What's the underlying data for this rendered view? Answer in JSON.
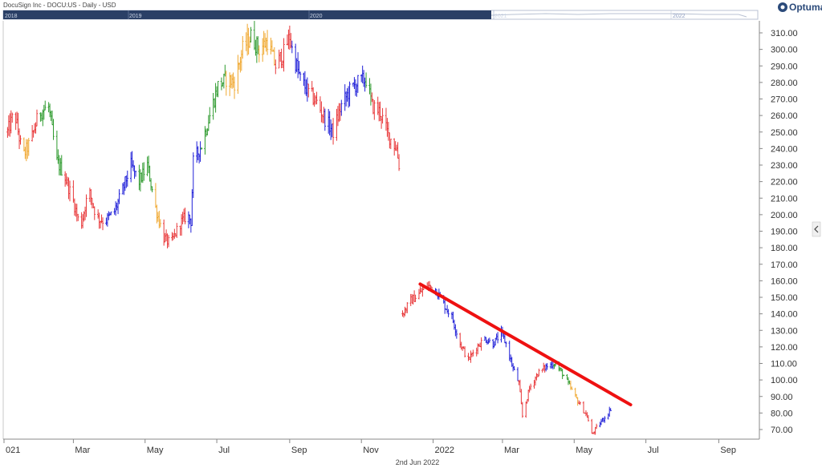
{
  "header": {
    "title": "DocuSign Inc - DOCU:US - Daily - USD",
    "brand": "Optuma"
  },
  "navigator": {
    "years": [
      "2018",
      "2019",
      "2020",
      "2021",
      "2022"
    ]
  },
  "footer": {
    "date": "2nd Jun 2022"
  },
  "colors": {
    "red": "#e8383a",
    "blue": "#2020d8",
    "green": "#2e9a2e",
    "orange": "#f0a830",
    "trendline": "#ee1111",
    "navigator": "#2a3f66"
  },
  "chart_data": {
    "type": "bar",
    "style": "ohlc",
    "title": "DocuSign Inc - DOCU:US - Daily - USD",
    "y_axis_side": "right",
    "ylim": [
      64,
      317
    ],
    "y_ticks": [
      "310.00",
      "300.00",
      "290.00",
      "280.00",
      "270.00",
      "260.00",
      "250.00",
      "240.00",
      "230.00",
      "220.00",
      "210.00",
      "200.00",
      "190.00",
      "180.00",
      "170.00",
      "160.00",
      "150.00",
      "140.00",
      "130.00",
      "120.00",
      "110.00",
      "100.00",
      "90.00",
      "80.00",
      "70.00"
    ],
    "x_ticks": [
      "021",
      "Mar",
      "May",
      "Jul",
      "Sep",
      "Nov",
      "2022",
      "Mar",
      "May",
      "Jul",
      "Sep"
    ],
    "price_path": [
      [
        "2021-01-04",
        250,
        "red"
      ],
      [
        "2021-01-10",
        262,
        "red"
      ],
      [
        "2021-01-17",
        235,
        "orange"
      ],
      [
        "2021-01-24",
        245,
        "red"
      ],
      [
        "2021-01-31",
        262,
        "green"
      ],
      [
        "2021-02-08",
        265,
        "green"
      ],
      [
        "2021-02-15",
        232,
        "green"
      ],
      [
        "2021-02-21",
        225,
        "red"
      ],
      [
        "2021-03-01",
        208,
        "red"
      ],
      [
        "2021-03-07",
        192,
        "red"
      ],
      [
        "2021-03-14",
        215,
        "red"
      ],
      [
        "2021-03-21",
        198,
        "red"
      ],
      [
        "2021-03-28",
        196,
        "blue"
      ],
      [
        "2021-04-05",
        202,
        "blue"
      ],
      [
        "2021-04-12",
        215,
        "blue"
      ],
      [
        "2021-04-19",
        230,
        "blue"
      ],
      [
        "2021-04-26",
        220,
        "green"
      ],
      [
        "2021-05-03",
        230,
        "green"
      ],
      [
        "2021-05-10",
        204,
        "orange"
      ],
      [
        "2021-05-17",
        186,
        "red"
      ],
      [
        "2021-05-23",
        182,
        "red"
      ],
      [
        "2021-05-30",
        194,
        "red"
      ],
      [
        "2021-06-06",
        200,
        "blue"
      ],
      [
        "2021-06-09",
        196,
        "blue"
      ],
      [
        "2021-06-11",
        232,
        "blue"
      ],
      [
        "2021-06-18",
        242,
        "green"
      ],
      [
        "2021-06-25",
        260,
        "green"
      ],
      [
        "2021-07-02",
        278,
        "green"
      ],
      [
        "2021-07-09",
        282,
        "orange"
      ],
      [
        "2021-07-16",
        280,
        "orange"
      ],
      [
        "2021-07-23",
        300,
        "orange"
      ],
      [
        "2021-07-30",
        308,
        "green"
      ],
      [
        "2021-08-06",
        300,
        "orange"
      ],
      [
        "2021-08-13",
        305,
        "orange"
      ],
      [
        "2021-08-20",
        290,
        "red"
      ],
      [
        "2021-08-27",
        298,
        "red"
      ],
      [
        "2021-09-01",
        308,
        "red"
      ],
      [
        "2021-09-03",
        300,
        "blue"
      ],
      [
        "2021-09-10",
        282,
        "blue"
      ],
      [
        "2021-09-17",
        274,
        "red"
      ],
      [
        "2021-09-24",
        268,
        "red"
      ],
      [
        "2021-10-01",
        258,
        "blue"
      ],
      [
        "2021-10-08",
        250,
        "red"
      ],
      [
        "2021-10-15",
        266,
        "blue"
      ],
      [
        "2021-10-22",
        275,
        "blue"
      ],
      [
        "2021-10-29",
        280,
        "blue"
      ],
      [
        "2021-11-05",
        282,
        "green"
      ],
      [
        "2021-11-10",
        266,
        "red"
      ],
      [
        "2021-11-17",
        262,
        "red"
      ],
      [
        "2021-11-24",
        248,
        "red"
      ],
      [
        "2021-12-01",
        240,
        "red"
      ],
      [
        "2021-12-03",
        230,
        "red"
      ],
      [
        "2021-12-06",
        140,
        "red"
      ],
      [
        "2021-12-13",
        148,
        "red"
      ],
      [
        "2021-12-20",
        152,
        "red"
      ],
      [
        "2021-12-27",
        157,
        "red"
      ],
      [
        "2022-01-03",
        155,
        "blue"
      ],
      [
        "2022-01-10",
        146,
        "blue"
      ],
      [
        "2022-01-17",
        138,
        "blue"
      ],
      [
        "2022-01-24",
        122,
        "red"
      ],
      [
        "2022-01-31",
        112,
        "red"
      ],
      [
        "2022-02-07",
        120,
        "red"
      ],
      [
        "2022-02-14",
        125,
        "blue"
      ],
      [
        "2022-02-21",
        122,
        "blue"
      ],
      [
        "2022-02-28",
        128,
        "blue"
      ],
      [
        "2022-03-04",
        122,
        "blue"
      ],
      [
        "2022-03-10",
        107,
        "blue"
      ],
      [
        "2022-03-15",
        98,
        "red"
      ],
      [
        "2022-03-18",
        78,
        "red"
      ],
      [
        "2022-03-24",
        95,
        "red"
      ],
      [
        "2022-03-31",
        104,
        "red"
      ],
      [
        "2022-04-07",
        108,
        "blue"
      ],
      [
        "2022-04-14",
        110,
        "green"
      ],
      [
        "2022-04-21",
        104,
        "green"
      ],
      [
        "2022-04-28",
        95,
        "orange"
      ],
      [
        "2022-05-05",
        86,
        "red"
      ],
      [
        "2022-05-12",
        78,
        "red"
      ],
      [
        "2022-05-16",
        67,
        "red"
      ],
      [
        "2022-05-23",
        74,
        "blue"
      ],
      [
        "2022-05-30",
        80,
        "blue"
      ],
      [
        "2022-06-02",
        84,
        "blue"
      ]
    ],
    "trendline": {
      "from": [
        "2021-12-21",
        158
      ],
      "to": [
        "2022-06-18",
        85
      ]
    }
  }
}
